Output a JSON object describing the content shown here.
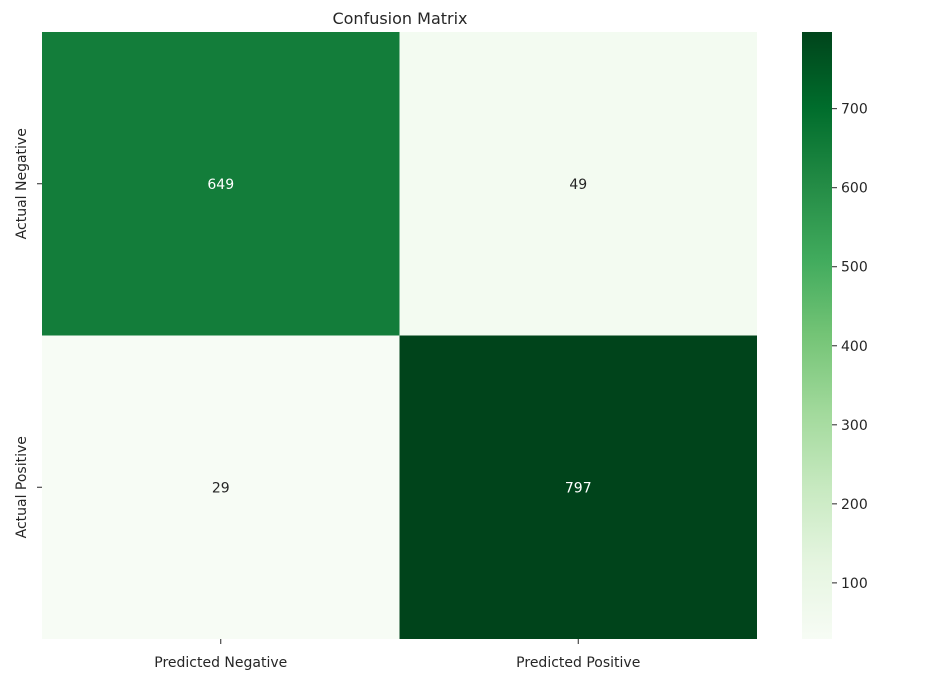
{
  "chart_data": {
    "type": "heatmap",
    "title": "Confusion Matrix",
    "x_categories": [
      "Predicted Negative",
      "Predicted Positive"
    ],
    "y_categories": [
      "Actual Negative",
      "Actual Positive"
    ],
    "values": [
      [
        649,
        49
      ],
      [
        29,
        797
      ]
    ],
    "cell_labels": [
      [
        "649",
        "49"
      ],
      [
        "29",
        "797"
      ]
    ],
    "colormap": "Greens",
    "colorbar": {
      "range": [
        29,
        797
      ],
      "ticks": [
        100,
        200,
        300,
        400,
        500,
        600,
        700
      ],
      "tick_labels": [
        "100",
        "200",
        "300",
        "400",
        "500",
        "600",
        "700"
      ]
    },
    "grid": false,
    "legend": "colorbar-right"
  }
}
